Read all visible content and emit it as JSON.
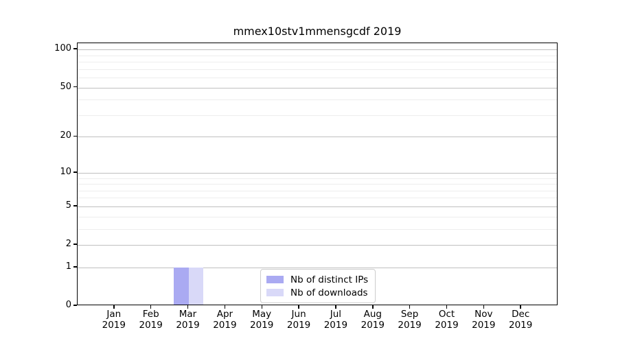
{
  "title": "mmex10stv1mmensgcdf 2019",
  "chart_data": {
    "type": "bar",
    "title": "mmex10stv1mmensgcdf 2019",
    "categories": [
      "Jan 2019",
      "Feb 2019",
      "Mar 2019",
      "Apr 2019",
      "May 2019",
      "Jun 2019",
      "Jul 2019",
      "Aug 2019",
      "Sep 2019",
      "Oct 2019",
      "Nov 2019",
      "Dec 2019"
    ],
    "series": [
      {
        "name": "Nb of distinct IPs",
        "color": "#aaaaf2",
        "values": [
          0,
          0,
          1,
          0,
          0,
          0,
          0,
          0,
          0,
          0,
          0,
          0
        ]
      },
      {
        "name": "Nb of downloads",
        "color": "#d9d9f8",
        "values": [
          0,
          0,
          1,
          0,
          0,
          0,
          0,
          0,
          0,
          0,
          0,
          0
        ]
      }
    ],
    "xlabel": "",
    "ylabel": "",
    "y_scale": "log1p",
    "ylim": [
      0,
      112
    ],
    "y_tick_values": [
      0,
      1,
      2,
      5,
      10,
      20,
      50,
      100
    ],
    "y_tick_labels": [
      "0",
      "1",
      "2",
      "5",
      "10",
      "20",
      "50",
      "100"
    ],
    "y_minor_gridlines": [
      3,
      4,
      6,
      7,
      8,
      9,
      30,
      40,
      60,
      70,
      80,
      90
    ],
    "grid": {
      "orientation": "horizontal",
      "major_color": "#bfbfbf",
      "minor_color": "#ededed"
    },
    "legend": {
      "position": "lower center"
    }
  },
  "colors": {
    "background": "#ffffff",
    "spine": "#000000",
    "bar_distinct_ips": "#aaaaf2",
    "bar_downloads": "#d9d9f8",
    "legend_border": "#cccccc"
  }
}
